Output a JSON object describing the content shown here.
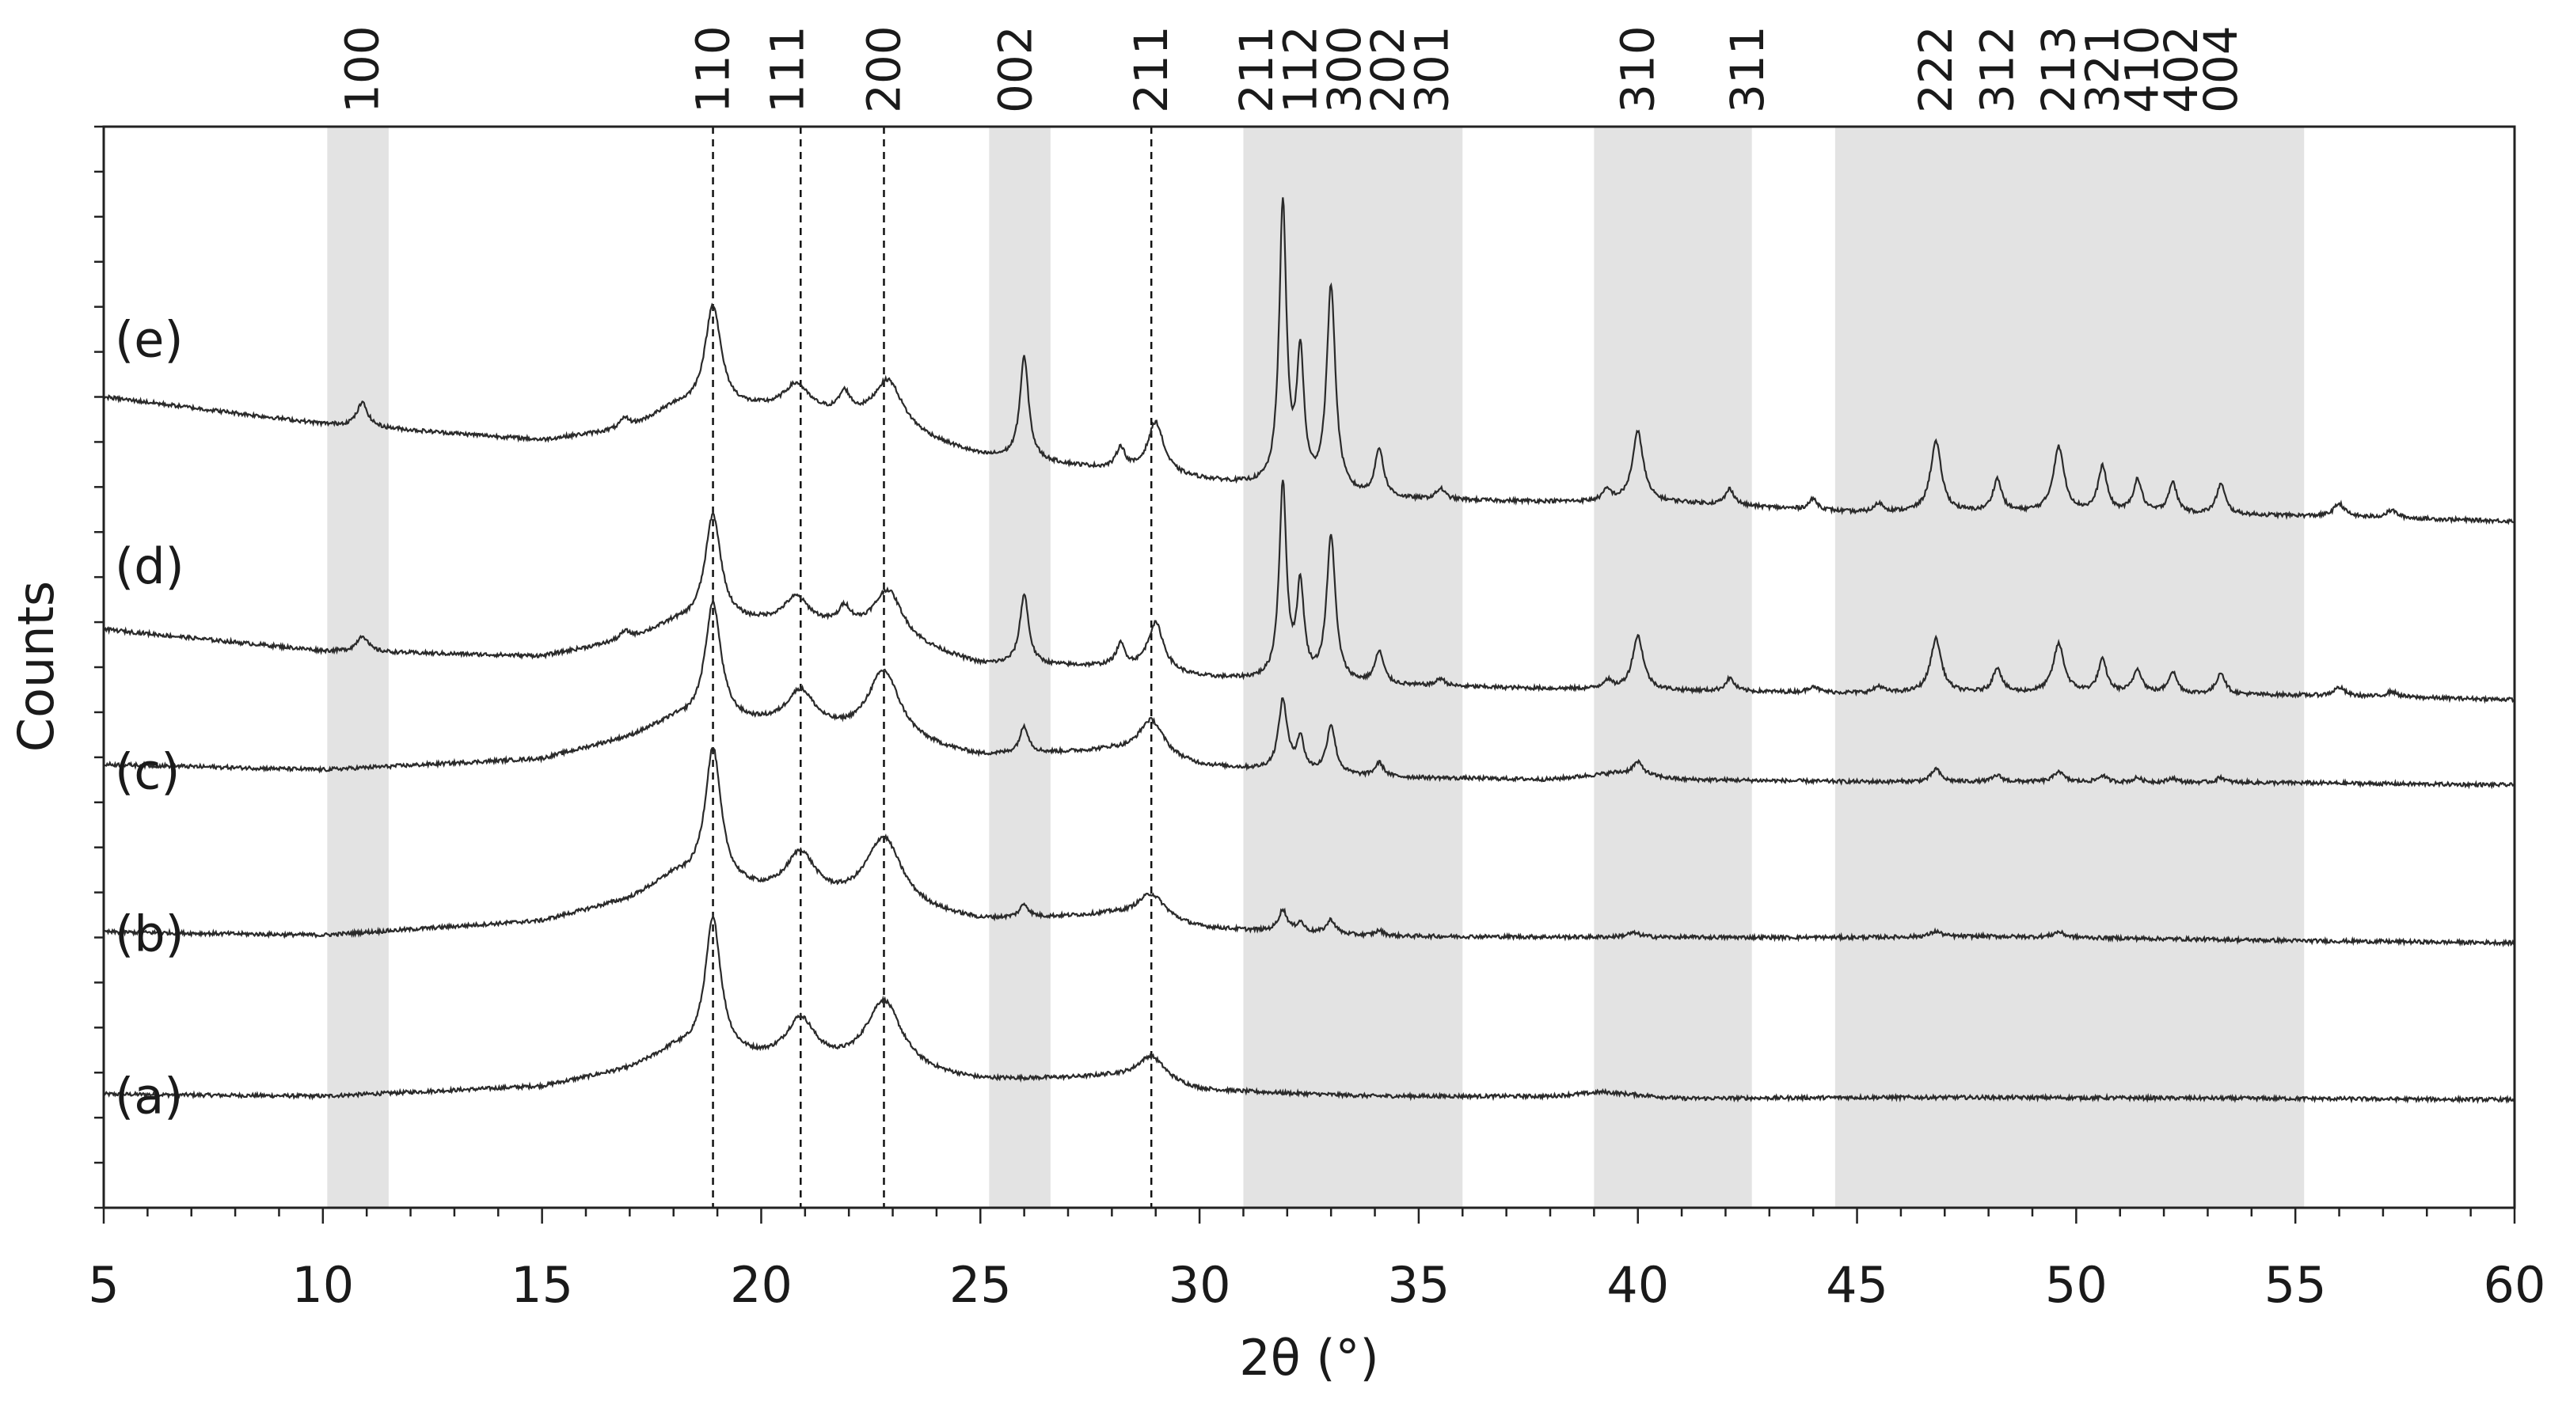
{
  "chart_data": {
    "type": "line",
    "xlabel": "2θ (°)",
    "ylabel": "Counts",
    "xlim": [
      5,
      60
    ],
    "x_ticks": [
      5,
      10,
      15,
      20,
      25,
      30,
      35,
      40,
      45,
      50,
      55,
      60
    ],
    "x_minor_step": 1,
    "y_scale": "arbitrary units, curves vertically offset (stacked)",
    "grid": false,
    "legend": "none (curve labels printed at left of each curve)",
    "shaded_regions": [
      {
        "x0": 10.1,
        "x1": 11.5
      },
      {
        "x0": 25.2,
        "x1": 26.6
      },
      {
        "x0": 31.0,
        "x1": 36.0
      },
      {
        "x0": 39.0,
        "x1": 42.6
      },
      {
        "x0": 44.5,
        "x1": 55.2
      }
    ],
    "reference_lines": [
      18.9,
      20.9,
      22.8,
      28.9
    ],
    "hkl_labels": [
      {
        "text": "100",
        "x": 10.9
      },
      {
        "text": "110",
        "x": 18.9
      },
      {
        "text": "111",
        "x": 20.6
      },
      {
        "text": "200",
        "x": 22.8
      },
      {
        "text": "002",
        "x": 25.8
      },
      {
        "text": "211",
        "x": 28.9
      },
      {
        "text": "211",
        "x": 31.3
      },
      {
        "text": "112",
        "x": 32.3
      },
      {
        "text": "300",
        "x": 33.3
      },
      {
        "text": "202",
        "x": 34.3
      },
      {
        "text": "301",
        "x": 35.3
      },
      {
        "text": "310",
        "x": 40.0
      },
      {
        "text": "311",
        "x": 42.5
      },
      {
        "text": "222",
        "x": 46.8
      },
      {
        "text": "312",
        "x": 48.2
      },
      {
        "text": "213",
        "x": 49.6
      },
      {
        "text": "321",
        "x": 50.6
      },
      {
        "text": "410",
        "x": 51.5
      },
      {
        "text": "402",
        "x": 52.4
      },
      {
        "text": "004",
        "x": 53.3
      }
    ],
    "series": [
      {
        "name": "(a)",
        "label_y": 10,
        "baseline": [
          [
            5,
            10.5
          ],
          [
            10,
            10.3
          ],
          [
            15,
            11.2
          ],
          [
            17,
            12.8
          ],
          [
            18,
            14.5
          ],
          [
            20,
            13.5
          ],
          [
            22,
            12.8
          ],
          [
            25,
            11.7
          ],
          [
            28,
            12.0
          ],
          [
            30,
            10.8
          ],
          [
            34,
            10.3
          ],
          [
            38,
            10.3
          ],
          [
            39.2,
            10.7
          ],
          [
            41,
            10.1
          ],
          [
            45,
            10.2
          ],
          [
            48,
            10.2
          ],
          [
            55,
            10.1
          ],
          [
            60,
            10.0
          ]
        ],
        "peaks": [
          [
            18.9,
            12.5,
            0.22
          ],
          [
            20.9,
            4.0,
            0.4
          ],
          [
            22.8,
            6.5,
            0.5
          ],
          [
            28.9,
            2.5,
            0.4
          ]
        ]
      },
      {
        "name": "(b)",
        "label_y": 25,
        "baseline": [
          [
            5,
            25.5
          ],
          [
            10,
            25.2
          ],
          [
            15,
            26.5
          ],
          [
            17,
            28.5
          ],
          [
            18,
            30.5
          ],
          [
            20,
            29.0
          ],
          [
            22,
            28.0
          ],
          [
            25,
            26.5
          ],
          [
            28,
            27.0
          ],
          [
            30,
            25.8
          ],
          [
            34,
            25.1
          ],
          [
            40,
            25.0
          ],
          [
            45,
            25.0
          ],
          [
            48,
            25.1
          ],
          [
            55,
            24.7
          ],
          [
            60,
            24.5
          ]
        ],
        "peaks": [
          [
            18.9,
            12.5,
            0.22
          ],
          [
            20.9,
            4.0,
            0.4
          ],
          [
            22.8,
            6.5,
            0.5
          ],
          [
            26.0,
            1.2,
            0.12
          ],
          [
            28.9,
            2.5,
            0.4
          ],
          [
            31.9,
            2.0,
            0.12
          ],
          [
            32.3,
            0.9,
            0.1
          ],
          [
            33.0,
            1.3,
            0.12
          ],
          [
            34.1,
            0.5,
            0.12
          ],
          [
            39.9,
            0.4,
            0.2
          ],
          [
            46.8,
            0.5,
            0.15
          ],
          [
            49.6,
            0.5,
            0.15
          ]
        ]
      },
      {
        "name": "(c)",
        "label_y": 40,
        "baseline": [
          [
            5,
            41.0
          ],
          [
            10,
            40.5
          ],
          [
            15,
            41.5
          ],
          [
            17,
            43.5
          ],
          [
            18,
            45.0
          ],
          [
            20,
            44.5
          ],
          [
            22,
            43.5
          ],
          [
            25,
            41.7
          ],
          [
            28,
            42.2
          ],
          [
            30,
            40.8
          ],
          [
            34,
            39.8
          ],
          [
            38,
            39.6
          ],
          [
            39.5,
            40.2
          ],
          [
            41,
            39.6
          ],
          [
            45,
            39.4
          ],
          [
            50,
            39.4
          ],
          [
            55,
            39.3
          ],
          [
            60,
            39.1
          ]
        ],
        "peaks": [
          [
            18.9,
            11.0,
            0.22
          ],
          [
            20.9,
            3.5,
            0.4
          ],
          [
            22.8,
            6.5,
            0.45
          ],
          [
            26.0,
            2.5,
            0.12
          ],
          [
            28.9,
            3.5,
            0.35
          ],
          [
            31.9,
            6.5,
            0.12
          ],
          [
            32.3,
            3.0,
            0.1
          ],
          [
            33.0,
            4.5,
            0.12
          ],
          [
            34.1,
            1.3,
            0.12
          ],
          [
            40.0,
            1.2,
            0.15
          ],
          [
            46.8,
            1.2,
            0.12
          ],
          [
            48.2,
            0.6,
            0.12
          ],
          [
            49.6,
            1.0,
            0.12
          ],
          [
            50.6,
            0.6,
            0.1
          ],
          [
            51.4,
            0.4,
            0.1
          ],
          [
            52.2,
            0.4,
            0.1
          ],
          [
            53.3,
            0.5,
            0.1
          ]
        ]
      },
      {
        "name": "(d)",
        "label_y": 59,
        "baseline": [
          [
            5,
            53.5
          ],
          [
            10,
            51.5
          ],
          [
            15,
            51.0
          ],
          [
            17,
            52.5
          ],
          [
            18,
            54.0
          ],
          [
            20,
            54.0
          ],
          [
            22,
            53.5
          ],
          [
            25,
            50.2
          ],
          [
            28,
            50.0
          ],
          [
            30,
            49.0
          ],
          [
            34,
            48.3
          ],
          [
            38,
            48.0
          ],
          [
            41,
            47.8
          ],
          [
            45,
            47.6
          ],
          [
            50,
            47.6
          ],
          [
            55,
            47.4
          ],
          [
            60,
            47.0
          ]
        ],
        "peaks": [
          [
            10.9,
            1.5,
            0.15
          ],
          [
            16.9,
            0.8,
            0.15
          ],
          [
            18.9,
            10.0,
            0.22
          ],
          [
            20.8,
            2.5,
            0.35
          ],
          [
            21.9,
            1.5,
            0.15
          ],
          [
            22.9,
            4.5,
            0.4
          ],
          [
            26.0,
            6.5,
            0.12
          ],
          [
            28.2,
            2.0,
            0.12
          ],
          [
            29.0,
            4.5,
            0.22
          ],
          [
            31.9,
            18.0,
            0.1
          ],
          [
            32.3,
            8.5,
            0.1
          ],
          [
            33.0,
            13.5,
            0.12
          ],
          [
            34.1,
            3.0,
            0.12
          ],
          [
            35.5,
            0.7,
            0.12
          ],
          [
            39.3,
            0.8,
            0.12
          ],
          [
            40.0,
            5.0,
            0.15
          ],
          [
            42.1,
            1.2,
            0.12
          ],
          [
            44.0,
            0.6,
            0.12
          ],
          [
            45.5,
            0.6,
            0.12
          ],
          [
            46.8,
            5.0,
            0.15
          ],
          [
            48.2,
            2.3,
            0.12
          ],
          [
            49.6,
            4.5,
            0.15
          ],
          [
            50.6,
            3.0,
            0.12
          ],
          [
            51.4,
            2.2,
            0.12
          ],
          [
            52.2,
            2.0,
            0.12
          ],
          [
            53.3,
            2.0,
            0.12
          ],
          [
            56.0,
            0.8,
            0.15
          ],
          [
            57.2,
            0.5,
            0.15
          ]
        ]
      },
      {
        "name": "(e)",
        "label_y": 80,
        "baseline": [
          [
            5,
            75.0
          ],
          [
            10,
            72.5
          ],
          [
            15,
            71.0
          ],
          [
            17,
            72.0
          ],
          [
            18,
            74.0
          ],
          [
            20,
            73.8
          ],
          [
            22,
            73.0
          ],
          [
            25,
            69.5
          ],
          [
            28,
            68.2
          ],
          [
            30,
            67.3
          ],
          [
            34,
            65.5
          ],
          [
            38,
            65.3
          ],
          [
            41,
            65.2
          ],
          [
            45,
            64.3
          ],
          [
            50,
            64.3
          ],
          [
            55,
            64.0
          ],
          [
            60,
            63.5
          ]
        ],
        "peaks": [
          [
            10.9,
            2.2,
            0.15
          ],
          [
            16.9,
            1.0,
            0.15
          ],
          [
            18.9,
            9.5,
            0.22
          ],
          [
            20.8,
            2.5,
            0.35
          ],
          [
            21.9,
            1.8,
            0.15
          ],
          [
            22.9,
            4.5,
            0.4
          ],
          [
            26.0,
            9.5,
            0.12
          ],
          [
            28.2,
            2.0,
            0.12
          ],
          [
            29.0,
            4.8,
            0.22
          ],
          [
            31.9,
            26.0,
            0.1
          ],
          [
            32.3,
            12.0,
            0.1
          ],
          [
            33.0,
            19.0,
            0.12
          ],
          [
            34.1,
            4.5,
            0.12
          ],
          [
            35.5,
            1.0,
            0.12
          ],
          [
            39.3,
            1.0,
            0.12
          ],
          [
            40.0,
            6.5,
            0.15
          ],
          [
            42.1,
            1.5,
            0.12
          ],
          [
            44.0,
            1.0,
            0.12
          ],
          [
            45.5,
            0.8,
            0.12
          ],
          [
            46.8,
            6.5,
            0.15
          ],
          [
            48.2,
            3.0,
            0.12
          ],
          [
            49.6,
            6.0,
            0.15
          ],
          [
            50.6,
            4.2,
            0.12
          ],
          [
            51.4,
            3.0,
            0.12
          ],
          [
            52.2,
            2.8,
            0.12
          ],
          [
            53.3,
            2.8,
            0.12
          ],
          [
            56.0,
            1.2,
            0.15
          ],
          [
            57.2,
            0.7,
            0.15
          ]
        ]
      }
    ]
  }
}
